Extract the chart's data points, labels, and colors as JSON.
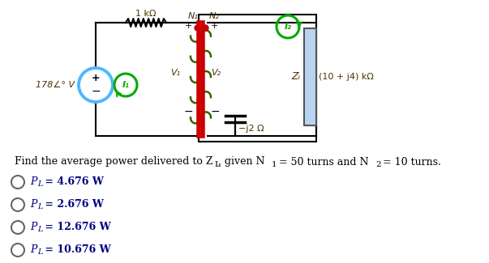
{
  "bg_color": "#ffffff",
  "question_text": "Find the average power delivered to Z",
  "question_sub": "L",
  "question_rest": ", given N",
  "n1_sub": "1",
  "n1_val": " = 50 turns and N",
  "n2_sub": "2",
  "n2_val": " = 10 turns.",
  "options": [
    "4.676",
    "2.676",
    "12.676",
    "10.676"
  ],
  "src_label": "178∠° V",
  "res_label": "1 kΩ",
  "N1_label": "N₁",
  "N2_label": "N₂",
  "V1_label": "V₁",
  "V2_label": "V₂",
  "I1_label": "I₁",
  "I2_label": "I₂",
  "ZL_label": "Zₗ",
  "load_label": "(10 + j4) kΩ",
  "cap_label": "−j2 Ω",
  "src_color": "#4db8ff",
  "i1_color": "#00aa00",
  "i2_color": "#00aa00",
  "coil_color": "#cc0000",
  "bar_color": "#cc0000",
  "zl_fill": "#b8d4f0",
  "dot_color": "#cc0000",
  "text_color": "#4a3000",
  "opt_color": "#000080"
}
